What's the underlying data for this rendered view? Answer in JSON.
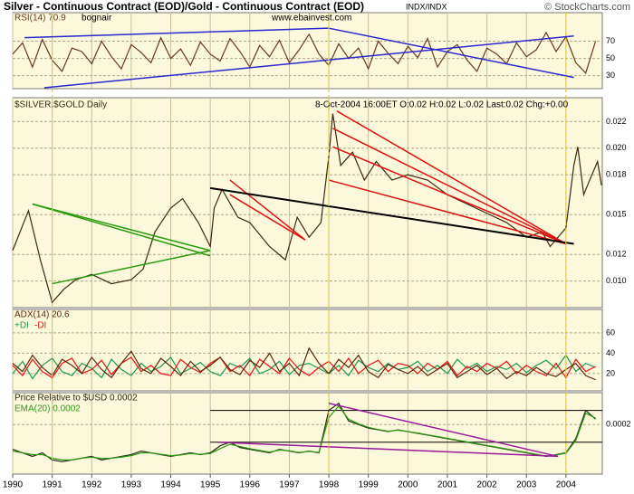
{
  "title": "Silver - Continuous Contract (EOD)/Gold - Continuous Contract (EOD)",
  "exchange": "INDX/INDX",
  "credit": "© StockCharts.com",
  "watermark": "www.ebainvest.com",
  "chart_data": [
    {
      "type": "line",
      "annotation": "bognair",
      "xlim": [
        1990,
        2004.92
      ],
      "ylim": [
        15,
        103
      ],
      "yticks": [
        70,
        50,
        30
      ],
      "grid": true,
      "vlines": [
        1991,
        1998,
        2004
      ],
      "x": [
        1990,
        1990.25,
        1990.5,
        1990.75,
        1991,
        1991.25,
        1991.5,
        1991.75,
        1992,
        1992.25,
        1992.5,
        1992.75,
        1993,
        1993.25,
        1993.5,
        1993.75,
        1994,
        1994.25,
        1994.5,
        1994.75,
        1995,
        1995.25,
        1995.5,
        1995.75,
        1996,
        1996.25,
        1996.5,
        1996.75,
        1997,
        1997.25,
        1997.5,
        1997.75,
        1998,
        1998.25,
        1998.5,
        1998.75,
        1999,
        1999.25,
        1999.5,
        1999.75,
        2000,
        2000.25,
        2000.5,
        2000.75,
        2001,
        2001.25,
        2001.5,
        2001.75,
        2002,
        2002.25,
        2002.5,
        2002.75,
        2003,
        2003.25,
        2003.5,
        2003.75,
        2004,
        2004.25,
        2004.5,
        2004.75
      ],
      "series": [
        {
          "name": "RSI(14) 70.9",
          "color": "#6b3a1e",
          "values": [
            55,
            68,
            40,
            72,
            48,
            35,
            62,
            58,
            44,
            70,
            52,
            38,
            66,
            57,
            45,
            74,
            50,
            61,
            42,
            69,
            55,
            47,
            73,
            58,
            40,
            65,
            52,
            71,
            45,
            60,
            78,
            55,
            42,
            67,
            50,
            62,
            38,
            70,
            56,
            44,
            64,
            51,
            73,
            40,
            58,
            66,
            48,
            35,
            62,
            55,
            44,
            68,
            52,
            60,
            80,
            58,
            75,
            45,
            33,
            70
          ]
        }
      ],
      "trendlines": [
        {
          "color": "#2a2ad0",
          "x": [
            1990.3,
            1998.0
          ],
          "y": [
            74,
            85
          ]
        },
        {
          "color": "#2a2ad0",
          "x": [
            1998.0,
            2004.2
          ],
          "y": [
            85,
            28
          ]
        },
        {
          "color": "#2a2ad0",
          "x": [
            1990.8,
            2004.2
          ],
          "y": [
            16,
            76
          ]
        }
      ]
    },
    {
      "type": "line",
      "annotation": "8-Oct-2004 16:00ET O:0.02 H:0.02 L:0.02 Last:0.02 Chg:+0.00",
      "xlim": [
        1990,
        2004.92
      ],
      "ylim": [
        0.008,
        0.0238
      ],
      "yticks": [
        0.022,
        {
          "value": 0.02,
          "label": "0.020"
        },
        0.018,
        0.015,
        0.012,
        {
          "value": 0.01,
          "label": "0.010"
        }
      ],
      "grid": true,
      "x": [
        1990,
        1990.4,
        1990.7,
        1991,
        1991.3,
        1991.6,
        1992,
        1992.5,
        1993,
        1993.3,
        1993.6,
        1994,
        1994.3,
        1994.7,
        1995,
        1995.1,
        1995.3,
        1995.7,
        1996,
        1996.5,
        1996.9,
        1997.2,
        1997.5,
        1997.8,
        1998,
        1998.1,
        1998.3,
        1998.6,
        1998.9,
        1999.2,
        1999.6,
        2000,
        2000.5,
        2001,
        2001.5,
        2002,
        2002.5,
        2003,
        2003.4,
        2003.6,
        2004,
        2004.2,
        2004.3,
        2004.45,
        2004.6,
        2004.8,
        2004.9
      ],
      "series": [
        {
          "name": "$SILVER:$GOLD Daily",
          "color": "#3a2a10",
          "values": [
            0.0123,
            0.0153,
            0.0116,
            0.0084,
            0.0094,
            0.0101,
            0.0105,
            0.0098,
            0.0101,
            0.0109,
            0.0137,
            0.0155,
            0.0162,
            0.0144,
            0.0126,
            0.0155,
            0.0169,
            0.0148,
            0.0144,
            0.0126,
            0.0116,
            0.0148,
            0.0133,
            0.0144,
            0.0194,
            0.0226,
            0.0187,
            0.0197,
            0.0176,
            0.019,
            0.0176,
            0.018,
            0.0176,
            0.0165,
            0.0158,
            0.0151,
            0.0144,
            0.0133,
            0.0137,
            0.0126,
            0.014,
            0.0187,
            0.0201,
            0.0165,
            0.0176,
            0.019,
            0.0172
          ]
        }
      ],
      "trendlines": [
        {
          "color": "#2a9a10",
          "x": [
            1990.5,
            1995.0
          ],
          "y": [
            0.0158,
            0.0123
          ]
        },
        {
          "color": "#2a9a10",
          "x": [
            1991.0,
            1995.0
          ],
          "y": [
            0.0098,
            0.0123
          ]
        },
        {
          "color": "#2a9a10",
          "x": [
            1990.5,
            1995.0
          ],
          "y": [
            0.0158,
            0.0119
          ]
        },
        {
          "color": "#e01010",
          "x": [
            1995.5,
            1997.4
          ],
          "y": [
            0.0176,
            0.0131
          ]
        },
        {
          "color": "#e01010",
          "x": [
            1995.5,
            1997.4
          ],
          "y": [
            0.0165,
            0.0131
          ]
        },
        {
          "color": "#e01010",
          "x": [
            1998.2,
            2004.0
          ],
          "y": [
            0.0228,
            0.0128
          ]
        },
        {
          "color": "#e01010",
          "x": [
            1998.1,
            2004.0
          ],
          "y": [
            0.0215,
            0.0128
          ]
        },
        {
          "color": "#e01010",
          "x": [
            1998.1,
            2004.0
          ],
          "y": [
            0.0201,
            0.0128
          ]
        },
        {
          "color": "#e01010",
          "x": [
            1998.0,
            2004.0
          ],
          "y": [
            0.0176,
            0.0128
          ]
        },
        {
          "color": "#000000",
          "x": [
            1995.0,
            2004.2
          ],
          "y": [
            0.017,
            0.0128
          ]
        }
      ]
    },
    {
      "type": "line",
      "xlim": [
        1990,
        2004.92
      ],
      "ylim": [
        3,
        83
      ],
      "yticks": [
        60,
        40,
        20
      ],
      "grid": true,
      "x": [
        1990,
        1990.25,
        1990.5,
        1990.75,
        1991,
        1991.25,
        1991.5,
        1991.75,
        1992,
        1992.25,
        1992.5,
        1992.75,
        1993,
        1993.25,
        1993.5,
        1993.75,
        1994,
        1994.25,
        1994.5,
        1994.75,
        1995,
        1995.25,
        1995.5,
        1995.75,
        1996,
        1996.25,
        1996.5,
        1996.75,
        1997,
        1997.25,
        1997.5,
        1997.75,
        1998,
        1998.25,
        1998.5,
        1998.75,
        1999,
        1999.25,
        1999.5,
        1999.75,
        2000,
        2000.25,
        2000.5,
        2000.75,
        2001,
        2001.25,
        2001.5,
        2001.75,
        2002,
        2002.25,
        2002.5,
        2002.75,
        2003,
        2003.25,
        2003.5,
        2003.75,
        2004,
        2004.25,
        2004.5,
        2004.75
      ],
      "series": [
        {
          "name": "+DI",
          "color": "#1a9a50",
          "values": [
            20,
            32,
            15,
            28,
            35,
            22,
            18,
            30,
            25,
            16,
            34,
            24,
            18,
            30,
            22,
            27,
            36,
            20,
            25,
            31,
            22,
            18,
            30,
            26,
            35,
            20,
            24,
            32,
            19,
            28,
            30,
            25,
            20,
            28,
            18,
            33,
            26,
            22,
            30,
            24,
            26,
            32,
            22,
            28,
            20,
            34,
            25,
            30,
            22,
            27,
            24,
            30,
            21,
            28,
            33,
            25,
            38,
            22,
            30,
            26
          ]
        },
        {
          "name": "-DI",
          "color": "#ee1010",
          "values": [
            28,
            18,
            34,
            22,
            16,
            30,
            35,
            20,
            24,
            33,
            19,
            30,
            36,
            22,
            28,
            20,
            18,
            34,
            26,
            21,
            30,
            36,
            22,
            28,
            18,
            34,
            27,
            20,
            35,
            24,
            18,
            26,
            32,
            22,
            35,
            20,
            28,
            33,
            22,
            30,
            28,
            20,
            30,
            24,
            32,
            18,
            27,
            22,
            30,
            25,
            32,
            20,
            28,
            22,
            18,
            30,
            16,
            34,
            22,
            27
          ]
        },
        {
          "name": "ADX(14) 20.6",
          "color": "#5a2a0a",
          "values": [
            30,
            22,
            38,
            26,
            18,
            34,
            28,
            20,
            36,
            24,
            16,
            30,
            42,
            25,
            20,
            35,
            27,
            18,
            32,
            22,
            28,
            36,
            24,
            19,
            33,
            26,
            40,
            22,
            30,
            18,
            45,
            30,
            20,
            34,
            26,
            38,
            22,
            16,
            29,
            24,
            20,
            27,
            18,
            24,
            30,
            16,
            22,
            28,
            19,
            25,
            15,
            22,
            18,
            26,
            20,
            17,
            24,
            30,
            18,
            14
          ]
        }
      ]
    },
    {
      "type": "line",
      "xlim": [
        1990,
        2004.92
      ],
      "ylim": [
        6e-05,
        0.00029
      ],
      "yticks": [
        0.0002
      ],
      "grid": true,
      "xticks": [
        1990,
        1991,
        1992,
        1993,
        1994,
        1995,
        1996,
        1997,
        1998,
        1999,
        2000,
        2001,
        2002,
        2003,
        2004
      ],
      "hlines": [
        0.00024,
        0.00015
      ],
      "x": [
        1990,
        1990.25,
        1990.5,
        1990.75,
        1991,
        1991.25,
        1991.5,
        1991.75,
        1992,
        1992.25,
        1992.5,
        1992.75,
        1993,
        1993.25,
        1993.5,
        1993.75,
        1994,
        1994.25,
        1994.5,
        1994.75,
        1995,
        1995.25,
        1995.5,
        1995.75,
        1996,
        1996.25,
        1996.5,
        1996.75,
        1997,
        1997.25,
        1997.5,
        1997.75,
        1998,
        1998.25,
        1998.5,
        1998.75,
        1999,
        1999.25,
        1999.5,
        1999.75,
        2000,
        2000.25,
        2000.5,
        2000.75,
        2001,
        2001.25,
        2001.5,
        2001.75,
        2002,
        2002.25,
        2002.5,
        2002.75,
        2003,
        2003.25,
        2003.5,
        2003.75,
        2004,
        2004.25,
        2004.5,
        2004.75
      ],
      "series": [
        {
          "name": "Price Relative to $USD 0.0002",
          "color": "#2a2a1a",
          "values": [
            0.00013,
            0.00012,
            0.00011,
            0.00012,
            0.0001,
            9.5e-05,
            0.0001,
            0.000105,
            0.00011,
            0.0001,
            0.000105,
            0.00011,
            0.000115,
            0.000125,
            0.00012,
            0.000115,
            0.00011,
            0.000115,
            0.00012,
            0.000115,
            0.00012,
            0.00014,
            0.00015,
            0.000135,
            0.00013,
            0.000125,
            0.00012,
            0.00013,
            0.000125,
            0.00012,
            0.000125,
            0.00012,
            0.00024,
            0.00026,
            0.00021,
            0.0002,
            0.00019,
            0.000185,
            0.00018,
            0.000185,
            0.00018,
            0.000175,
            0.00017,
            0.000165,
            0.00016,
            0.000155,
            0.00015,
            0.000145,
            0.00014,
            0.000135,
            0.00013,
            0.000125,
            0.00012,
            0.000115,
            0.00011,
            0.000115,
            0.00012,
            0.00016,
            0.00024,
            0.000215
          ]
        },
        {
          "name": "EMA(20) 0.0002",
          "color": "#2a9a10",
          "values": [
            0.000125,
            0.00012,
            0.000115,
            0.000115,
            0.000105,
            0.0001,
            0.0001,
            0.000105,
            0.000108,
            0.000104,
            0.000105,
            0.000108,
            0.000112,
            0.00012,
            0.00012,
            0.000116,
            0.000112,
            0.000114,
            0.000118,
            0.000116,
            0.000118,
            0.000132,
            0.000144,
            0.000138,
            0.000132,
            0.000127,
            0.000122,
            0.000128,
            0.000126,
            0.000121,
            0.000124,
            0.000121,
            0.00022,
            0.000252,
            0.000215,
            0.000202,
            0.000192,
            0.000186,
            0.000181,
            0.000184,
            0.00018,
            0.000176,
            0.000171,
            0.000166,
            0.000161,
            0.000156,
            0.000151,
            0.000146,
            0.000141,
            0.000136,
            0.000131,
            0.000126,
            0.000121,
            0.000116,
            0.000111,
            0.000114,
            0.000119,
            0.000155,
            0.000232,
            0.000218
          ]
        }
      ],
      "trendlines": [
        {
          "color": "#9a1a9a",
          "x": [
            1995.2,
            2003.8
          ],
          "y": [
            0.00015,
            0.00011
          ]
        },
        {
          "color": "#9a1a9a",
          "x": [
            1998.0,
            2003.8
          ],
          "y": [
            0.00026,
            0.00011
          ]
        }
      ]
    }
  ]
}
